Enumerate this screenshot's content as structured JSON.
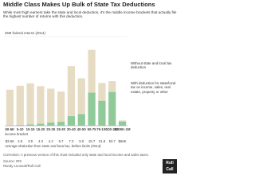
{
  "chart_data": {
    "type": "bar",
    "stacked": true,
    "title": "Middle Class Makes Up Bulk of State Tax Deductions",
    "subtitle": "While most high earners take the state and local deduction, it's the middle income brackets that actually file the highest number of returns with this deduction.",
    "categories": [
      "$0-5K",
      "5-10",
      "10-15",
      "15-20",
      "20-25",
      "25-30",
      "30-40",
      "40-50",
      "50-75",
      "75-100",
      "100-200",
      "$200K-1M"
    ],
    "x_caption": "income bracket",
    "series": [
      {
        "name": "With deduction for state/local tax on income, sales, real estate, property or other",
        "color": "#8fca98",
        "values": [
          0.1,
          0.2,
          0.4,
          0.6,
          0.9,
          1.1,
          2.7,
          3.3,
          9.3,
          7.0,
          9.5,
          1.2
        ]
      },
      {
        "name": "Without state and local tax deduction",
        "color": "#e6dcc3",
        "values": [
          10,
          11,
          11.5,
          10.5,
          9.5,
          8.5,
          14,
          10,
          12,
          5,
          3,
          0.3
        ]
      }
    ],
    "ylim": [
      0,
      25
    ],
    "yticks": [
      {
        "value": 25,
        "label": "25M federal returns (2014)"
      }
    ],
    "grid": true,
    "deduction_row": {
      "caption": "Average deduction from state and local tax, before limits (2014)",
      "values": [
        3.6,
        4.9,
        3.9,
        4.3,
        4.2,
        5.7,
        7.3,
        9.0,
        15.7,
        21.8,
        53.7,
        66
      ],
      "value_labels": [
        "$3.6K",
        "4.9",
        "3.9",
        "4.3",
        "4.2",
        "5.7",
        "7.3",
        "9.0",
        "15.7",
        "21.8",
        "53.7",
        "$66K"
      ]
    },
    "correction": "Correction: A previous version of this chart included only state and local income and sales taxes.",
    "source": "Source: IRS",
    "credit": "Randy Leonard/Roll Call",
    "logo": "Roll Call"
  }
}
